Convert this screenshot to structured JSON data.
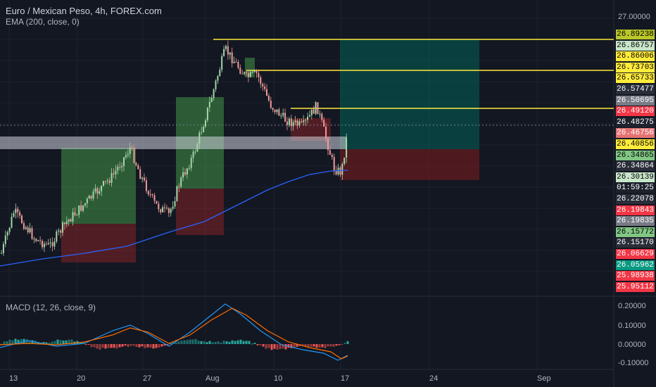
{
  "header": {
    "symbol_title": "Euro / Mexican Peso, 4h, FOREX.com",
    "ema_label": "EMA (200, close, 0)",
    "macd_label": "MACD (12, 26, close, 9)"
  },
  "price_axis": {
    "top_label": "27.00000",
    "tags": [
      {
        "value": "26.89238",
        "color": "#b9c72a",
        "text_color": "#000000"
      },
      {
        "value": "26.86757",
        "color": "#c8e6c9",
        "text_color": "#000000"
      },
      {
        "value": "26.86006",
        "color": "#ffeb3b",
        "text_color": "#000000"
      },
      {
        "value": "26.73703",
        "color": "#ffeb3b",
        "text_color": "#000000"
      },
      {
        "value": "26.65733",
        "color": "#ffeb3b",
        "text_color": "#000000"
      },
      {
        "value": "26.57477",
        "color": "#2a2e39",
        "text_color": "#ffffff"
      },
      {
        "value": "26.50695",
        "color": "#787b86",
        "text_color": "#ffffff"
      },
      {
        "value": "26.49120",
        "color": "#f23645",
        "text_color": "#ffffff"
      },
      {
        "value": "26.48275",
        "color": "#1e222d",
        "text_color": "#ffffff"
      },
      {
        "value": "26.46756",
        "color": "#e57373",
        "text_color": "#ffffff"
      },
      {
        "value": "26.40856",
        "color": "#ffeb3b",
        "text_color": "#000000"
      },
      {
        "value": "26.34865",
        "color": "#81c784",
        "text_color": "#000000"
      },
      {
        "value": "26.34864",
        "color": "#2a2e39",
        "text_color": "#ffffff"
      },
      {
        "value": "26.30139",
        "color": "#c8e6c9",
        "text_color": "#000000"
      },
      {
        "value": "01:59:25",
        "color": "#1e222d",
        "text_color": "#ffffff"
      },
      {
        "value": "26.22078",
        "color": "#2a2e39",
        "text_color": "#ffffff"
      },
      {
        "value": "26.19843",
        "color": "#f23645",
        "text_color": "#ffffff"
      },
      {
        "value": "26.19835",
        "color": "#787b86",
        "text_color": "#ffffff"
      },
      {
        "value": "26.15772",
        "color": "#81c784",
        "text_color": "#000000"
      },
      {
        "value": "26.15170",
        "color": "#2a2e39",
        "text_color": "#ffffff"
      },
      {
        "value": "26.06629",
        "color": "#f23645",
        "text_color": "#ffffff"
      },
      {
        "value": "26.05962",
        "color": "#089981",
        "text_color": "#ffffff"
      },
      {
        "value": "25.98938",
        "color": "#f23645",
        "text_color": "#ffffff"
      },
      {
        "value": "25.95112",
        "color": "#f23645",
        "text_color": "#ffffff"
      }
    ]
  },
  "macd_axis": [
    "0.20000",
    "0.10000",
    "0.00000",
    "-0.10000"
  ],
  "time_axis": [
    "13",
    "20",
    "27",
    "Aug",
    "10",
    "17",
    "24",
    "Sep"
  ],
  "colors": {
    "background": "#131722",
    "up_candle": "#a5d6a7",
    "down_candle": "#ef9a9a",
    "ema_line": "#2962ff",
    "level_line": "#ffeb3b",
    "macd_line": "#2196f3",
    "signal_line": "#ff6d00"
  }
}
